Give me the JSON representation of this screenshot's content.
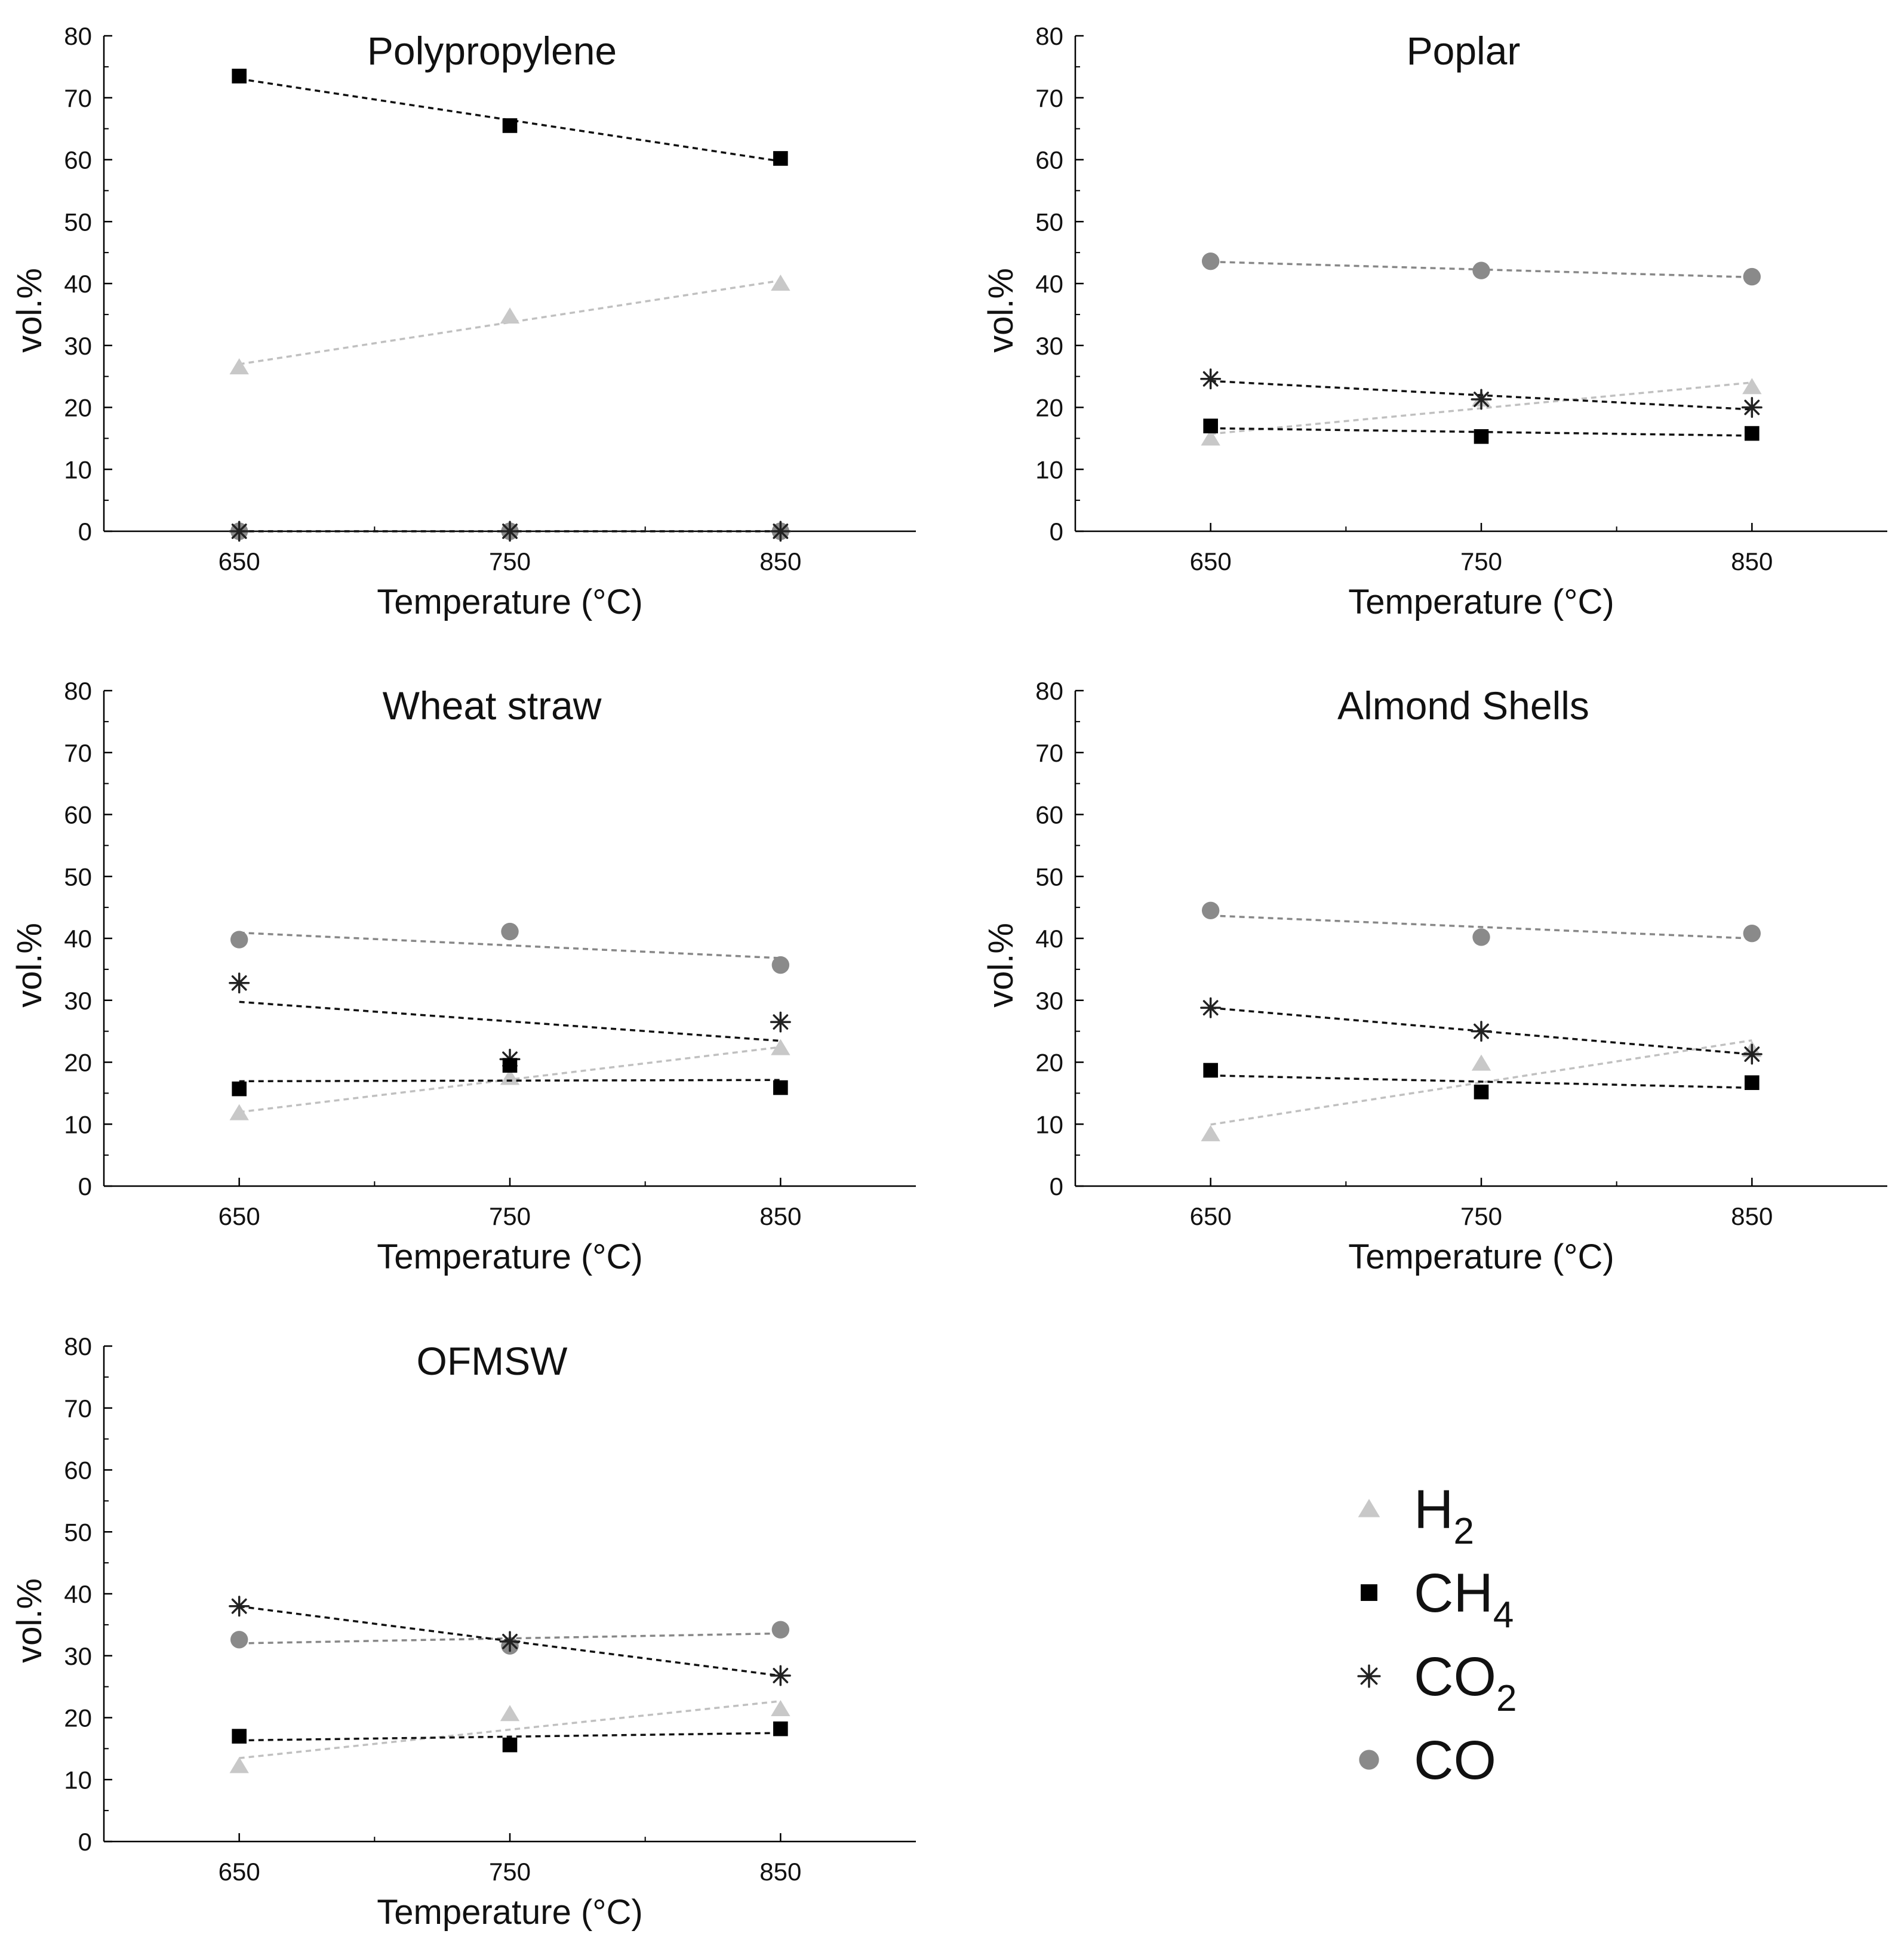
{
  "colors": {
    "H2": "#c8c8c8",
    "CH4": "#000000",
    "CO2": "#222222",
    "CO": "#8a8a8a",
    "H2_line": "#c0c0c0",
    "CH4_line": "#111111",
    "CO2_line": "#111111",
    "CO_line": "#888888",
    "axis": "#000000"
  },
  "legend": {
    "items": [
      {
        "key": "H2",
        "marker": "triangle",
        "main": "H",
        "sub": "2"
      },
      {
        "key": "CH4",
        "marker": "square",
        "main": "CH",
        "sub": "4"
      },
      {
        "key": "CO2",
        "marker": "asterisk",
        "main": "CO",
        "sub": "2"
      },
      {
        "key": "CO",
        "marker": "circle",
        "main": "CO",
        "sub": ""
      }
    ]
  },
  "chart_data": [
    {
      "type": "scatter",
      "title": "Polypropylene",
      "xlabel": "Temperature (°C)",
      "ylabel": "vol.%",
      "xlim": [
        600,
        900
      ],
      "ylim": [
        0,
        80
      ],
      "x_ticks": [
        650,
        750,
        850
      ],
      "y_ticks": [
        0,
        10,
        20,
        30,
        40,
        50,
        60,
        70,
        80
      ],
      "trendlines": true,
      "series": [
        {
          "name": "H2",
          "x": [
            650,
            750,
            850
          ],
          "values": [
            26.5,
            34.7,
            40.0
          ]
        },
        {
          "name": "CH4",
          "x": [
            650,
            750,
            850
          ],
          "values": [
            73.5,
            65.5,
            60.2
          ]
        },
        {
          "name": "CO2",
          "x": [
            650,
            750,
            850
          ],
          "values": [
            0.0,
            0.0,
            0.0
          ]
        },
        {
          "name": "CO",
          "x": [
            650,
            750,
            850
          ],
          "values": [
            0.0,
            0.0,
            0.0
          ]
        }
      ]
    },
    {
      "type": "scatter",
      "title": "Poplar",
      "xlabel": "Temperature (°C)",
      "ylabel": "vol.%",
      "xlim": [
        600,
        900
      ],
      "ylim": [
        0,
        80
      ],
      "x_ticks": [
        650,
        750,
        850
      ],
      "y_ticks": [
        0,
        10,
        20,
        30,
        40,
        50,
        60,
        70,
        80
      ],
      "trendlines": true,
      "series": [
        {
          "name": "H2",
          "x": [
            650,
            750,
            850
          ],
          "values": [
            15.0,
            21.3,
            23.3
          ]
        },
        {
          "name": "CH4",
          "x": [
            650,
            750,
            850
          ],
          "values": [
            17.0,
            15.3,
            15.8
          ]
        },
        {
          "name": "CO2",
          "x": [
            650,
            750,
            850
          ],
          "values": [
            24.6,
            21.3,
            20.0
          ]
        },
        {
          "name": "CO",
          "x": [
            650,
            750,
            850
          ],
          "values": [
            43.6,
            42.1,
            41.1
          ]
        }
      ]
    },
    {
      "type": "scatter",
      "title": "Wheat straw",
      "xlabel": "Temperature (°C)",
      "ylabel": "vol.%",
      "xlim": [
        600,
        900
      ],
      "ylim": [
        0,
        80
      ],
      "x_ticks": [
        650,
        750,
        850
      ],
      "y_ticks": [
        0,
        10,
        20,
        30,
        40,
        50,
        60,
        70,
        80
      ],
      "trendlines": true,
      "series": [
        {
          "name": "H2",
          "x": [
            650,
            750,
            850
          ],
          "values": [
            11.8,
            17.5,
            22.3
          ]
        },
        {
          "name": "CH4",
          "x": [
            650,
            750,
            850
          ],
          "values": [
            15.7,
            19.5,
            15.9
          ]
        },
        {
          "name": "CO2",
          "x": [
            650,
            750,
            850
          ],
          "values": [
            32.8,
            20.5,
            26.5
          ]
        },
        {
          "name": "CO",
          "x": [
            650,
            750,
            850
          ],
          "values": [
            39.8,
            41.1,
            35.7
          ]
        }
      ]
    },
    {
      "type": "scatter",
      "title": "Almond Shells",
      "xlabel": "Temperature (°C)",
      "ylabel": "vol.%",
      "xlim": [
        600,
        900
      ],
      "ylim": [
        0,
        80
      ],
      "x_ticks": [
        650,
        750,
        850
      ],
      "y_ticks": [
        0,
        10,
        20,
        30,
        40,
        50,
        60,
        70,
        80
      ],
      "trendlines": true,
      "series": [
        {
          "name": "H2",
          "x": [
            650,
            750,
            850
          ],
          "values": [
            8.4,
            19.8,
            22.0
          ]
        },
        {
          "name": "CH4",
          "x": [
            650,
            750,
            850
          ],
          "values": [
            18.7,
            15.2,
            16.7
          ]
        },
        {
          "name": "CO2",
          "x": [
            650,
            750,
            850
          ],
          "values": [
            28.8,
            25.0,
            21.3
          ]
        },
        {
          "name": "CO",
          "x": [
            650,
            750,
            850
          ],
          "values": [
            44.5,
            40.2,
            40.8
          ]
        }
      ]
    },
    {
      "type": "scatter",
      "title": "OFMSW",
      "xlabel": "Temperature (°C)",
      "ylabel": "vol.%",
      "xlim": [
        600,
        900
      ],
      "ylim": [
        0,
        80
      ],
      "x_ticks": [
        650,
        750,
        850
      ],
      "y_ticks": [
        0,
        10,
        20,
        30,
        40,
        50,
        60,
        70,
        80
      ],
      "trendlines": true,
      "series": [
        {
          "name": "H2",
          "x": [
            650,
            750,
            850
          ],
          "values": [
            12.2,
            20.6,
            21.4
          ]
        },
        {
          "name": "CH4",
          "x": [
            650,
            750,
            850
          ],
          "values": [
            17.0,
            15.6,
            18.2
          ]
        },
        {
          "name": "CO2",
          "x": [
            650,
            750,
            850
          ],
          "values": [
            38.0,
            32.3,
            26.8
          ]
        },
        {
          "name": "CO",
          "x": [
            650,
            750,
            850
          ],
          "values": [
            32.6,
            31.6,
            34.2
          ]
        }
      ]
    }
  ]
}
